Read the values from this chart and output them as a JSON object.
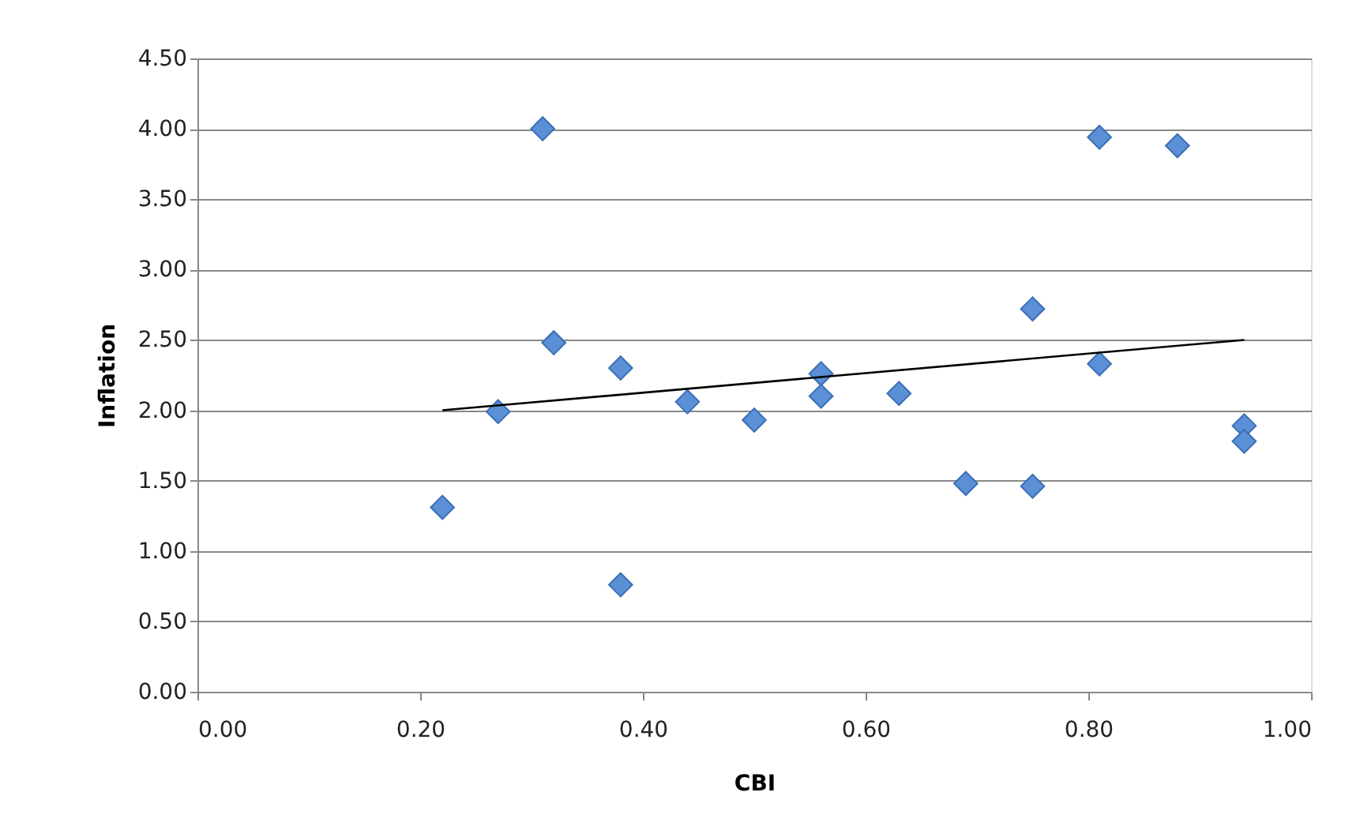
{
  "chart_data": {
    "type": "scatter",
    "xlabel": "CBI",
    "ylabel": "Inflation",
    "marker": "diamond",
    "grid": "y",
    "xlim": [
      0,
      1
    ],
    "xticks": [
      {
        "value": 0,
        "label": "0.00"
      },
      {
        "value": 0.2,
        "label": "0.20"
      },
      {
        "value": 0.4,
        "label": "0.40"
      },
      {
        "value": 0.6,
        "label": "0.60"
      },
      {
        "value": 0.8,
        "label": "0.80"
      },
      {
        "value": 1,
        "label": "1.00"
      }
    ],
    "ylim": [
      0,
      4.5
    ],
    "yticks": [
      {
        "value": 0,
        "label": "0.00"
      },
      {
        "value": 0.5,
        "label": "0.50"
      },
      {
        "value": 1,
        "label": "1.00"
      },
      {
        "value": 1.5,
        "label": "1.50"
      },
      {
        "value": 2,
        "label": "2.00"
      },
      {
        "value": 2.5,
        "label": "2.50"
      },
      {
        "value": 3,
        "label": "3.00"
      },
      {
        "value": 3.5,
        "label": "3.50"
      },
      {
        "value": 4,
        "label": "4.00"
      },
      {
        "value": 4.5,
        "label": "4.50"
      }
    ],
    "series": [
      {
        "color": "#5b8fd6",
        "x": [
          0.22,
          0.27,
          0.31,
          0.32,
          0.38,
          0.38,
          0.44,
          0.5,
          0.56,
          0.56,
          0.63,
          0.69,
          0.75,
          0.75,
          0.81,
          0.81,
          0.88,
          0.94,
          0.94
        ],
        "values": [
          1.31,
          1.99,
          4.0,
          2.48,
          2.3,
          0.76,
          2.06,
          1.93,
          2.26,
          2.1,
          2.12,
          1.48,
          2.72,
          1.46,
          3.94,
          2.33,
          3.88,
          1.89,
          1.78
        ]
      },
      {
        "type": "line",
        "color": "#000000",
        "marker": "none",
        "x": [
          0.22,
          0.94
        ],
        "values": [
          2.0,
          2.5
        ]
      }
    ]
  }
}
